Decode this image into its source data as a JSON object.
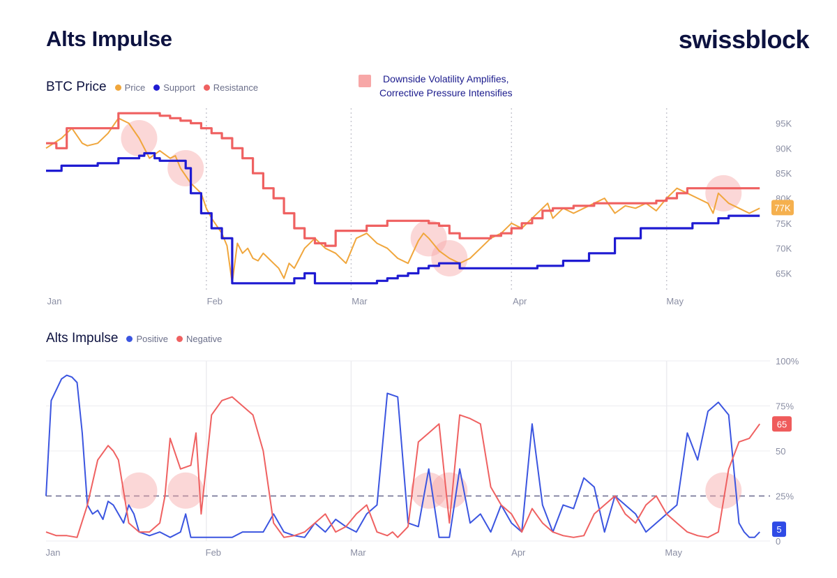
{
  "header": {
    "title": "Alts Impulse",
    "brand": "swissblock"
  },
  "annotation": {
    "line1": "Downside Volatility Amplifies,",
    "line2": "Corrective Pressure Intensifies",
    "color": "#f7a7a7"
  },
  "chart_data": [
    {
      "type": "line",
      "title": "BTC Price",
      "x_ticks": [
        "Jan",
        "Feb",
        "Mar",
        "Apr",
        "May"
      ],
      "x_range_days": [
        0,
        140
      ],
      "y_ticks": [
        "65K",
        "70K",
        "75K",
        "80K",
        "85K",
        "90K",
        "95K"
      ],
      "ylim": [
        62000,
        98000
      ],
      "last_value_label": "77K",
      "series": [
        {
          "name": "Price",
          "color": "#f0a63c",
          "x": [
            0,
            3,
            5,
            7,
            8,
            10,
            12,
            14,
            16,
            18,
            20,
            22,
            24,
            25,
            26,
            28,
            30,
            31,
            32,
            34,
            35,
            36,
            37,
            38,
            39,
            40,
            41,
            42,
            43,
            44,
            45,
            46,
            47,
            48,
            49,
            50,
            52,
            54,
            56,
            58,
            60,
            62,
            64,
            66,
            68,
            70,
            72,
            73,
            74,
            76,
            78,
            80,
            82,
            84,
            86,
            88,
            90,
            92,
            94,
            96,
            97,
            98,
            100,
            102,
            104,
            106,
            108,
            110,
            112,
            114,
            116,
            118,
            120,
            122,
            124,
            126,
            128,
            129,
            130,
            132,
            134,
            136,
            138
          ],
          "y": [
            90000,
            92000,
            94000,
            91000,
            90500,
            91000,
            93000,
            96000,
            95000,
            92000,
            88000,
            89500,
            88000,
            88500,
            86000,
            83000,
            81000,
            78000,
            76000,
            73000,
            70500,
            63000,
            71000,
            69000,
            70000,
            68000,
            67500,
            69000,
            68000,
            67000,
            66000,
            64000,
            67000,
            66000,
            68000,
            70000,
            72000,
            70000,
            69000,
            67000,
            72000,
            73000,
            71000,
            70000,
            68000,
            67000,
            71500,
            73000,
            72000,
            69500,
            68000,
            67000,
            68000,
            70000,
            72000,
            73000,
            75000,
            74000,
            76000,
            78000,
            79000,
            76000,
            78000,
            77000,
            78000,
            79000,
            80000,
            77000,
            78500,
            78000,
            79000,
            77500,
            80000,
            82000,
            81000,
            80000,
            79000,
            77000,
            81000,
            79000,
            78000,
            77000,
            78000
          ]
        },
        {
          "name": "Support",
          "color": "#1f1bd2",
          "x": [
            0,
            3,
            10,
            14,
            18,
            19,
            20,
            21,
            22,
            27,
            28,
            30,
            32,
            34,
            36,
            38,
            40,
            42,
            48,
            50,
            52,
            55,
            60,
            64,
            66,
            68,
            70,
            72,
            74,
            76,
            78,
            80,
            82,
            84,
            86,
            90,
            95,
            100,
            105,
            110,
            115,
            120,
            125,
            130,
            132,
            134,
            136,
            138
          ],
          "y": [
            85500,
            86500,
            87000,
            88000,
            88500,
            89000,
            89000,
            88000,
            87500,
            86000,
            81000,
            77000,
            74000,
            72000,
            63000,
            63000,
            63000,
            63000,
            64000,
            65000,
            63000,
            63000,
            63000,
            63500,
            64000,
            64500,
            65000,
            66000,
            66500,
            67000,
            67000,
            66000,
            66000,
            66000,
            66000,
            66000,
            66500,
            67500,
            69000,
            72000,
            74000,
            74000,
            75000,
            76000,
            76500,
            76500,
            76500,
            76500
          ]
        },
        {
          "name": "Resistance",
          "color": "#ef6161",
          "x": [
            0,
            2,
            4,
            6,
            10,
            12,
            14,
            16,
            18,
            20,
            22,
            24,
            26,
            28,
            30,
            32,
            34,
            36,
            38,
            40,
            42,
            44,
            46,
            48,
            50,
            52,
            54,
            56,
            58,
            60,
            62,
            64,
            66,
            68,
            70,
            72,
            74,
            76,
            78,
            80,
            82,
            84,
            86,
            88,
            90,
            92,
            94,
            96,
            98,
            100,
            102,
            104,
            106,
            108,
            110,
            112,
            114,
            116,
            118,
            120,
            122,
            124,
            126,
            128,
            130,
            132,
            134,
            136,
            138
          ],
          "y": [
            91000,
            90000,
            94000,
            94000,
            94000,
            94000,
            97000,
            97000,
            97000,
            97000,
            96500,
            96000,
            95500,
            95000,
            94000,
            93000,
            92000,
            90000,
            88000,
            85000,
            82000,
            80000,
            77000,
            74000,
            72000,
            71000,
            70500,
            73500,
            73500,
            73500,
            74500,
            74500,
            75500,
            75500,
            75500,
            75500,
            75000,
            74500,
            73000,
            72000,
            72000,
            72000,
            72500,
            73000,
            74000,
            75000,
            76000,
            77500,
            78000,
            78000,
            78500,
            78500,
            79000,
            79000,
            79000,
            79000,
            79000,
            79000,
            79500,
            80000,
            81000,
            82000,
            82000,
            82000,
            82000,
            82000,
            82000,
            82000,
            82000
          ]
        }
      ],
      "highlight_days": [
        18,
        27,
        74,
        78,
        131
      ]
    },
    {
      "type": "line",
      "title": "Alts Impulse",
      "x_ticks": [
        "Jan",
        "Feb",
        "Mar",
        "Apr",
        "May"
      ],
      "x_range_days": [
        0,
        140
      ],
      "y_ticks": [
        "0",
        "25%",
        "50",
        "75%",
        "100%"
      ],
      "ylim": [
        0,
        100
      ],
      "threshold": 25,
      "series": [
        {
          "name": "Positive",
          "color": "#3b55e0",
          "last_value_label": "5",
          "x": [
            0,
            1,
            3,
            4,
            5,
            6,
            7,
            8,
            9,
            10,
            11,
            12,
            13,
            14,
            15,
            16,
            17,
            18,
            20,
            22,
            24,
            26,
            27,
            28,
            29,
            30,
            32,
            34,
            36,
            38,
            40,
            42,
            44,
            46,
            48,
            50,
            52,
            54,
            56,
            58,
            60,
            62,
            64,
            66,
            68,
            70,
            72,
            74,
            76,
            78,
            80,
            82,
            84,
            86,
            88,
            90,
            92,
            94,
            96,
            98,
            100,
            102,
            104,
            106,
            108,
            110,
            112,
            114,
            116,
            118,
            120,
            122,
            124,
            126,
            128,
            130,
            132,
            134,
            135,
            136,
            137,
            138
          ],
          "y": [
            25,
            78,
            90,
            92,
            91,
            88,
            60,
            20,
            15,
            17,
            12,
            22,
            20,
            15,
            10,
            20,
            15,
            5,
            3,
            5,
            2,
            5,
            15,
            2,
            2,
            2,
            2,
            2,
            2,
            5,
            5,
            5,
            15,
            5,
            3,
            2,
            10,
            5,
            12,
            8,
            5,
            15,
            20,
            82,
            80,
            10,
            8,
            40,
            2,
            2,
            40,
            10,
            15,
            5,
            20,
            10,
            5,
            65,
            20,
            5,
            20,
            18,
            35,
            30,
            5,
            25,
            20,
            15,
            5,
            10,
            15,
            20,
            60,
            45,
            72,
            77,
            70,
            10,
            5,
            2,
            2,
            5
          ]
        },
        {
          "name": "Negative",
          "color": "#ef6161",
          "last_value_label": "65",
          "x": [
            0,
            2,
            4,
            6,
            8,
            10,
            12,
            13,
            14,
            16,
            18,
            20,
            22,
            23,
            24,
            26,
            28,
            29,
            30,
            32,
            34,
            36,
            38,
            40,
            42,
            44,
            46,
            48,
            50,
            52,
            54,
            56,
            58,
            60,
            62,
            64,
            66,
            67,
            68,
            70,
            72,
            74,
            76,
            78,
            80,
            82,
            84,
            86,
            88,
            90,
            92,
            94,
            96,
            98,
            100,
            102,
            104,
            106,
            108,
            110,
            112,
            114,
            116,
            118,
            120,
            122,
            124,
            126,
            128,
            130,
            132,
            134,
            136,
            138
          ],
          "y": [
            5,
            3,
            3,
            2,
            20,
            45,
            53,
            50,
            45,
            10,
            5,
            5,
            10,
            25,
            57,
            40,
            42,
            60,
            15,
            70,
            78,
            80,
            75,
            70,
            50,
            10,
            2,
            3,
            5,
            10,
            15,
            5,
            8,
            15,
            20,
            5,
            3,
            5,
            2,
            8,
            55,
            60,
            65,
            10,
            70,
            68,
            65,
            30,
            20,
            15,
            5,
            18,
            10,
            5,
            3,
            2,
            3,
            15,
            20,
            25,
            15,
            10,
            20,
            25,
            15,
            10,
            5,
            3,
            2,
            5,
            40,
            55,
            57,
            65
          ]
        }
      ],
      "highlight_days": [
        18,
        27,
        74,
        78,
        131
      ]
    }
  ]
}
